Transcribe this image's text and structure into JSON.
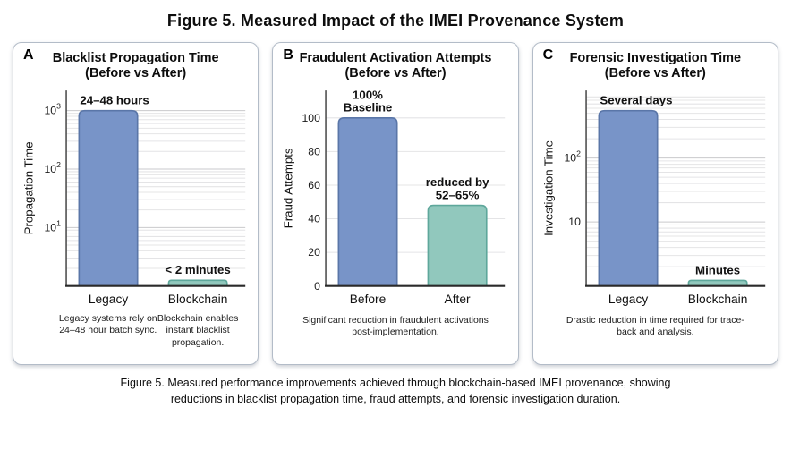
{
  "figure_title": "Figure 5. Measured Impact of the IMEI Provenance System",
  "caption": "Figure 5. Measured performance improvements achieved through blockchain-based IMEI provenance, showing reductions in blacklist propagation time, fraud attempts, and forensic investigation duration.",
  "colors": {
    "blue_bar": "#7894c8",
    "blue_border": "#5a76a8",
    "teal_bar": "#91c8bd",
    "teal_border": "#5ea79b",
    "grid_minor": "#e4e4e6",
    "grid_major": "#c9c9cc",
    "axis_y": "#4a4a4a",
    "axis_x": "#2a2a2a",
    "panel_border": "#b3bcc8"
  },
  "chart_data": [
    {
      "panel": "A",
      "type": "bar",
      "yscale": "log",
      "title": "Blacklist Propagation Time",
      "subtitle": "(Before vs After)",
      "ylabel": "Propagation Time",
      "categories": [
        "Legacy",
        "Blockchain"
      ],
      "values": [
        1000,
        1.25
      ],
      "bar_colors": [
        "blue",
        "teal"
      ],
      "bar_labels": [
        [
          "24–48 hours"
        ],
        [
          "< 2 minutes"
        ]
      ],
      "label_anchors": [
        "start",
        "middle"
      ],
      "yticks": [
        {
          "v": 1000,
          "t": "10",
          "s": "3"
        },
        {
          "v": 100,
          "t": "10",
          "s": "2"
        },
        {
          "v": 10,
          "t": "10",
          "s": "1"
        }
      ],
      "footnotes": [
        "Legacy systems rely on 24–48 hour batch sync.",
        "Blockchain enables instant blacklist propagation."
      ]
    },
    {
      "panel": "B",
      "type": "bar",
      "yscale": "linear",
      "ymax": 100,
      "title": "Fraudulent Activation Attempts",
      "subtitle": "(Before vs After)",
      "ylabel": "Fraud Attempts",
      "categories": [
        "Before",
        "After"
      ],
      "values": [
        100,
        48
      ],
      "bar_colors": [
        "blue",
        "teal"
      ],
      "bar_labels": [
        [
          "100%",
          "Baseline"
        ],
        [
          "reduced by",
          "52–65%"
        ]
      ],
      "label_anchors": [
        "middle",
        "middle"
      ],
      "yticks": [
        {
          "v": 0,
          "t": "0"
        },
        {
          "v": 20,
          "t": "20"
        },
        {
          "v": 40,
          "t": "40"
        },
        {
          "v": 60,
          "t": "60"
        },
        {
          "v": 80,
          "t": "80"
        },
        {
          "v": 100,
          "t": "100"
        }
      ],
      "footnotes": [
        "Significant reduction in fraudulent activations post-implementation."
      ]
    },
    {
      "panel": "C",
      "type": "bar",
      "yscale": "log",
      "title": "Forensic Investigation Time",
      "subtitle": "(Before vs After)",
      "ylabel": "Investigation Time",
      "categories": [
        "Legacy",
        "Blockchain"
      ],
      "values": [
        550,
        1.22
      ],
      "bar_colors": [
        "blue",
        "teal"
      ],
      "bar_labels": [
        [
          "Several days"
        ],
        [
          "Minutes"
        ]
      ],
      "label_anchors": [
        "start",
        "middle"
      ],
      "yticks": [
        {
          "v": 100,
          "t": "10",
          "s": "2"
        },
        {
          "v": 10,
          "t": "10",
          "s": ""
        }
      ],
      "footnotes": [
        "Drastic reduction in time required for trace-back and analysis."
      ]
    }
  ]
}
